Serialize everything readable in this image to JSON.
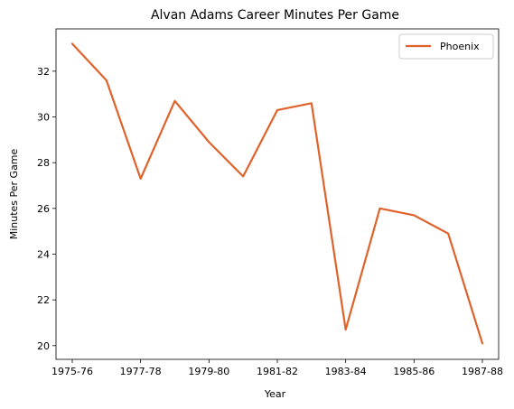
{
  "chart_data": {
    "type": "line",
    "title": "Alvan Adams Career Minutes Per Game",
    "xlabel": "Year",
    "ylabel": "Minutes Per Game",
    "x": [
      "1975-76",
      "1976-77",
      "1977-78",
      "1978-79",
      "1979-80",
      "1980-81",
      "1981-82",
      "1982-83",
      "1983-84",
      "1984-85",
      "1985-86",
      "1986-87",
      "1987-88"
    ],
    "x_tick_labels": [
      "1975-76",
      "1977-78",
      "1979-80",
      "1981-82",
      "1983-84",
      "1985-86",
      "1987-88"
    ],
    "y_ticks": [
      20,
      22,
      24,
      26,
      28,
      30,
      32
    ],
    "ylim": [
      19.4,
      33.85
    ],
    "series": [
      {
        "name": "Phoenix",
        "color": "#e0622b",
        "values": [
          33.2,
          31.6,
          27.3,
          30.7,
          28.9,
          27.4,
          30.3,
          30.6,
          20.7,
          26.0,
          25.7,
          24.9,
          20.1
        ]
      }
    ],
    "legend_position": "top-right",
    "grid": false
  }
}
